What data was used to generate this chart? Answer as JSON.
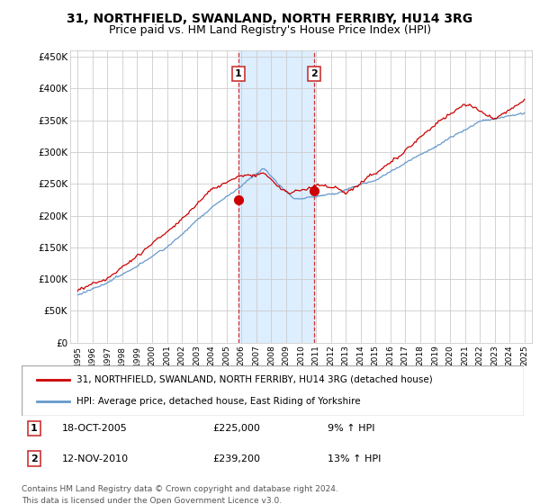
{
  "title": "31, NORTHFIELD, SWANLAND, NORTH FERRIBY, HU14 3RG",
  "subtitle": "Price paid vs. HM Land Registry's House Price Index (HPI)",
  "ylabel_ticks": [
    "£0",
    "£50K",
    "£100K",
    "£150K",
    "£200K",
    "£250K",
    "£300K",
    "£350K",
    "£400K",
    "£450K"
  ],
  "ytick_values": [
    0,
    50000,
    100000,
    150000,
    200000,
    250000,
    300000,
    350000,
    400000,
    450000
  ],
  "ylim": [
    0,
    460000
  ],
  "x_start_year": 1995,
  "x_end_year": 2025,
  "sale1_year": 2005.8,
  "sale1_price": 225000,
  "sale1_label": "1",
  "sale1_date": "18-OCT-2005",
  "sale1_pct": "9% ↑ HPI",
  "sale2_year": 2010.87,
  "sale2_price": 239200,
  "sale2_label": "2",
  "sale2_date": "12-NOV-2010",
  "sale2_pct": "13% ↑ HPI",
  "legend_line1": "31, NORTHFIELD, SWANLAND, NORTH FERRIBY, HU14 3RG (detached house)",
  "legend_line2": "HPI: Average price, detached house, East Riding of Yorkshire",
  "footnote1": "Contains HM Land Registry data © Crown copyright and database right 2024.",
  "footnote2": "This data is licensed under the Open Government Licence v3.0.",
  "red_color": "#cc0000",
  "blue_color": "#6699cc",
  "shading_color": "#ddeeff",
  "grid_color": "#cccccc",
  "title_fontsize": 10,
  "subtitle_fontsize": 9
}
